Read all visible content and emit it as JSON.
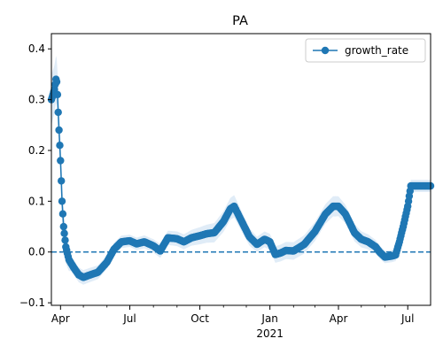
{
  "chart_data": {
    "type": "line",
    "title": "PA",
    "xlabel": "",
    "ylabel": "",
    "x_range": [
      "2020-03-20",
      "2021-07-31"
    ],
    "ylim": [
      -0.105,
      0.43
    ],
    "y_ticks": [
      -0.1,
      0.0,
      0.1,
      0.2,
      0.3,
      0.4
    ],
    "y_tick_labels": [
      "−0.1",
      "0.0",
      "0.1",
      "0.2",
      "0.3",
      "0.4"
    ],
    "x_major_ticks": [
      {
        "date": "2020-04-01",
        "label": "Apr"
      },
      {
        "date": "2020-07-01",
        "label": "Jul"
      },
      {
        "date": "2020-10-01",
        "label": "Oct"
      },
      {
        "date": "2021-01-01",
        "label": "Jan"
      },
      {
        "date": "2021-04-01",
        "label": "Apr"
      },
      {
        "date": "2021-07-01",
        "label": "Jul"
      }
    ],
    "x_minor_ticks": [
      "2020-05-01",
      "2020-06-01",
      "2020-08-01",
      "2020-09-01",
      "2020-11-01",
      "2020-12-01",
      "2021-02-01",
      "2021-03-01",
      "2021-05-01",
      "2021-06-01"
    ],
    "x_secondary_label": {
      "date": "2021-01-01",
      "label": "2021"
    },
    "reference_line": {
      "y": 0.0,
      "style": "dashed",
      "color": "#1f77b4"
    },
    "grid": false,
    "legend": {
      "position": "top-right",
      "entries": [
        "growth_rate"
      ]
    },
    "colors": {
      "series": "#1f77b4",
      "band": "#d6e6f4"
    },
    "band_halfwidth": [
      {
        "date": "2020-03-20",
        "w": 0.05
      },
      {
        "date": "2020-04-05",
        "w": 0.04
      },
      {
        "date": "2020-04-15",
        "w": 0.015
      },
      {
        "date": "2020-07-01",
        "w": 0.012
      },
      {
        "date": "2020-09-15",
        "w": 0.015
      },
      {
        "date": "2020-11-15",
        "w": 0.022
      },
      {
        "date": "2020-12-15",
        "w": 0.015
      },
      {
        "date": "2021-03-28",
        "w": 0.02
      },
      {
        "date": "2021-06-01",
        "w": 0.012
      },
      {
        "date": "2021-07-01",
        "w": 0.012
      },
      {
        "date": "2021-07-31",
        "w": 0.012
      }
    ],
    "series": [
      {
        "name": "growth_rate",
        "points": [
          {
            "date": "2020-03-20",
            "y": 0.3
          },
          {
            "date": "2020-03-22",
            "y": 0.31
          },
          {
            "date": "2020-03-24",
            "y": 0.32
          },
          {
            "date": "2020-03-26",
            "y": 0.34
          },
          {
            "date": "2020-03-27",
            "y": 0.335
          },
          {
            "date": "2020-03-28",
            "y": 0.31
          },
          {
            "date": "2020-03-30",
            "y": 0.24
          },
          {
            "date": "2020-04-01",
            "y": 0.18
          },
          {
            "date": "2020-04-03",
            "y": 0.1
          },
          {
            "date": "2020-04-05",
            "y": 0.05
          },
          {
            "date": "2020-04-08",
            "y": 0.01
          },
          {
            "date": "2020-04-12",
            "y": -0.015
          },
          {
            "date": "2020-04-18",
            "y": -0.03
          },
          {
            "date": "2020-04-25",
            "y": -0.045
          },
          {
            "date": "2020-05-01",
            "y": -0.05
          },
          {
            "date": "2020-05-10",
            "y": -0.045
          },
          {
            "date": "2020-05-20",
            "y": -0.04
          },
          {
            "date": "2020-06-01",
            "y": -0.02
          },
          {
            "date": "2020-06-10",
            "y": 0.005
          },
          {
            "date": "2020-06-20",
            "y": 0.02
          },
          {
            "date": "2020-07-01",
            "y": 0.022
          },
          {
            "date": "2020-07-10",
            "y": 0.016
          },
          {
            "date": "2020-07-20",
            "y": 0.02
          },
          {
            "date": "2020-08-01",
            "y": 0.012
          },
          {
            "date": "2020-08-10",
            "y": 0.002
          },
          {
            "date": "2020-08-20",
            "y": 0.028
          },
          {
            "date": "2020-09-01",
            "y": 0.026
          },
          {
            "date": "2020-09-10",
            "y": 0.02
          },
          {
            "date": "2020-09-20",
            "y": 0.028
          },
          {
            "date": "2020-10-01",
            "y": 0.032
          },
          {
            "date": "2020-10-10",
            "y": 0.036
          },
          {
            "date": "2020-10-20",
            "y": 0.038
          },
          {
            "date": "2020-11-01",
            "y": 0.06
          },
          {
            "date": "2020-11-10",
            "y": 0.085
          },
          {
            "date": "2020-11-15",
            "y": 0.09
          },
          {
            "date": "2020-11-25",
            "y": 0.06
          },
          {
            "date": "2020-12-05",
            "y": 0.03
          },
          {
            "date": "2020-12-15",
            "y": 0.015
          },
          {
            "date": "2020-12-25",
            "y": 0.025
          },
          {
            "date": "2021-01-01",
            "y": 0.02
          },
          {
            "date": "2021-01-08",
            "y": -0.005
          },
          {
            "date": "2021-01-15",
            "y": -0.002
          },
          {
            "date": "2021-01-22",
            "y": 0.003
          },
          {
            "date": "2021-02-01",
            "y": 0.002
          },
          {
            "date": "2021-02-15",
            "y": 0.015
          },
          {
            "date": "2021-03-01",
            "y": 0.04
          },
          {
            "date": "2021-03-15",
            "y": 0.075
          },
          {
            "date": "2021-03-25",
            "y": 0.09
          },
          {
            "date": "2021-04-01",
            "y": 0.09
          },
          {
            "date": "2021-04-10",
            "y": 0.075
          },
          {
            "date": "2021-04-15",
            "y": 0.06
          },
          {
            "date": "2021-04-22",
            "y": 0.038
          },
          {
            "date": "2021-05-01",
            "y": 0.025
          },
          {
            "date": "2021-05-10",
            "y": 0.02
          },
          {
            "date": "2021-05-20",
            "y": 0.01
          },
          {
            "date": "2021-05-25",
            "y": 0.0
          },
          {
            "date": "2021-06-01",
            "y": -0.01
          },
          {
            "date": "2021-06-10",
            "y": -0.008
          },
          {
            "date": "2021-06-15",
            "y": -0.006
          },
          {
            "date": "2021-06-20",
            "y": 0.02
          },
          {
            "date": "2021-06-25",
            "y": 0.05
          },
          {
            "date": "2021-07-01",
            "y": 0.09
          },
          {
            "date": "2021-07-05",
            "y": 0.13
          },
          {
            "date": "2021-07-31",
            "y": 0.13
          }
        ]
      }
    ]
  }
}
